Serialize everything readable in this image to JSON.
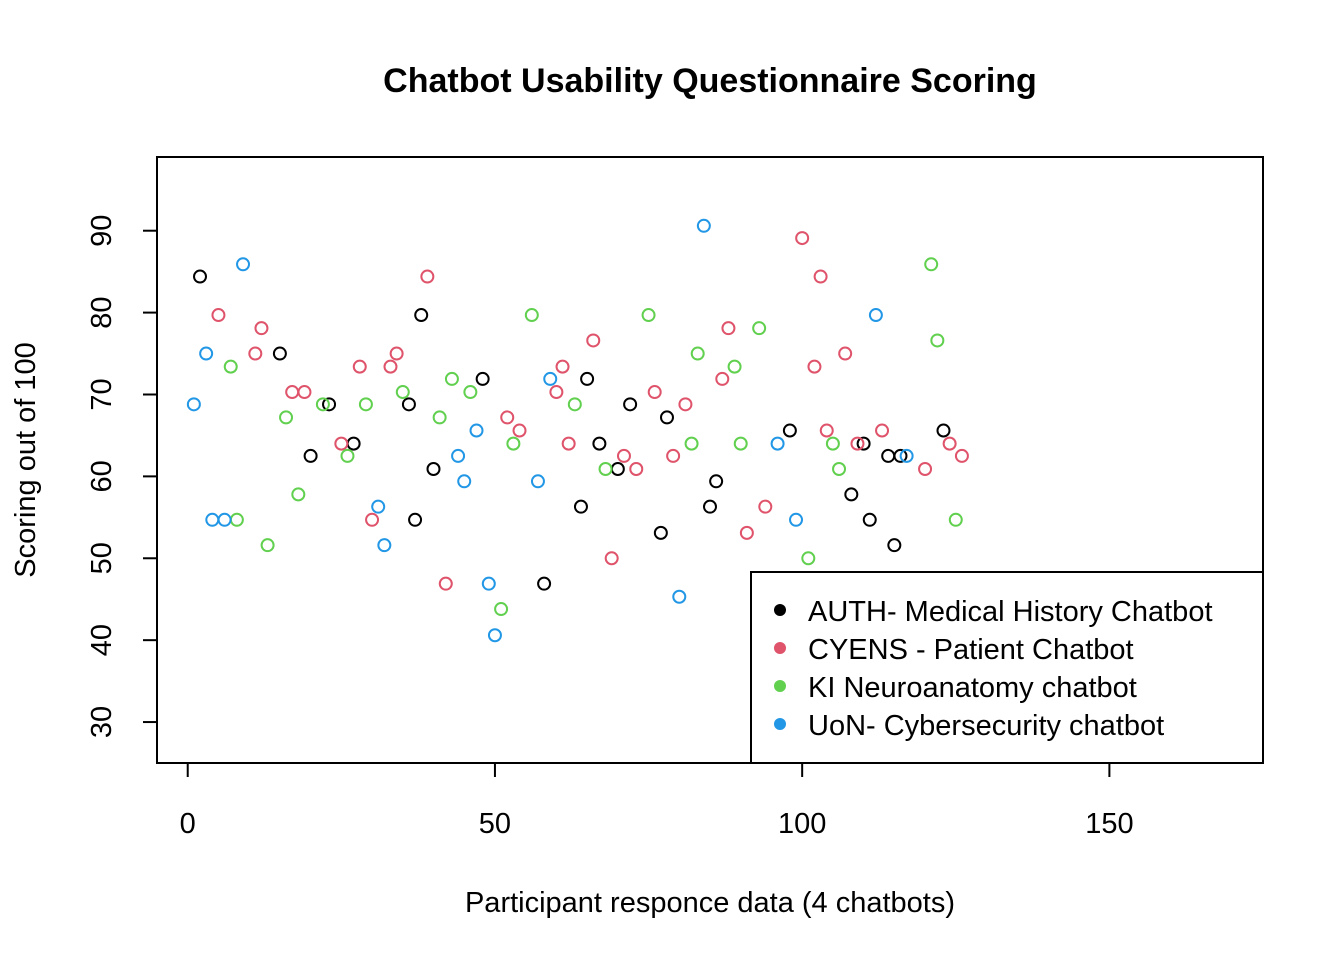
{
  "chart_data": {
    "type": "scatter",
    "title": "Chatbot Usability Questionnaire Scoring",
    "xlabel": "Participant responce data (4 chatbots)",
    "ylabel": "Scoring out of 100",
    "xlim": [
      -5,
      175
    ],
    "ylim": [
      25,
      99
    ],
    "xticks": [
      0,
      50,
      100,
      150
    ],
    "yticks": [
      30,
      40,
      50,
      60,
      70,
      80,
      90
    ],
    "grid": false,
    "legend_position": "bottom-right",
    "series": [
      {
        "name": "AUTH- Medical History Chatbot",
        "color": "#000000",
        "points": [
          [
            2,
            84.4
          ],
          [
            15,
            75
          ],
          [
            20,
            62.5
          ],
          [
            23,
            68.8
          ],
          [
            27,
            64
          ],
          [
            36,
            68.8
          ],
          [
            37,
            54.7
          ],
          [
            38,
            79.7
          ],
          [
            40,
            60.9
          ],
          [
            48,
            71.9
          ],
          [
            58,
            46.9
          ],
          [
            64,
            56.3
          ],
          [
            65,
            71.9
          ],
          [
            67,
            64
          ],
          [
            70,
            60.9
          ],
          [
            72,
            68.8
          ],
          [
            77,
            53.1
          ],
          [
            78,
            67.2
          ],
          [
            85,
            56.3
          ],
          [
            86,
            59.4
          ],
          [
            98,
            65.6
          ],
          [
            108,
            57.8
          ],
          [
            110,
            64
          ],
          [
            111,
            54.7
          ],
          [
            114,
            62.5
          ],
          [
            115,
            51.6
          ],
          [
            116,
            62.5
          ],
          [
            123,
            65.6
          ]
        ]
      },
      {
        "name": "CYENS - Patient Chatbot",
        "color": "#DF536B",
        "points": [
          [
            5,
            79.7
          ],
          [
            11,
            75
          ],
          [
            12,
            78.1
          ],
          [
            17,
            70.3
          ],
          [
            19,
            70.3
          ],
          [
            25,
            64
          ],
          [
            28,
            73.4
          ],
          [
            30,
            54.7
          ],
          [
            33,
            73.4
          ],
          [
            34,
            75
          ],
          [
            39,
            84.4
          ],
          [
            42,
            46.9
          ],
          [
            52,
            67.2
          ],
          [
            54,
            65.6
          ],
          [
            60,
            70.3
          ],
          [
            61,
            73.4
          ],
          [
            62,
            64
          ],
          [
            66,
            76.6
          ],
          [
            69,
            50
          ],
          [
            71,
            62.5
          ],
          [
            73,
            60.9
          ],
          [
            76,
            70.3
          ],
          [
            79,
            62.5
          ],
          [
            81,
            68.8
          ],
          [
            87,
            71.9
          ],
          [
            88,
            78.1
          ],
          [
            91,
            53.1
          ],
          [
            94,
            56.3
          ],
          [
            100,
            89.1
          ],
          [
            102,
            73.4
          ],
          [
            103,
            84.4
          ],
          [
            104,
            65.6
          ],
          [
            107,
            75
          ],
          [
            109,
            64
          ],
          [
            113,
            65.6
          ],
          [
            120,
            60.9
          ],
          [
            124,
            64
          ],
          [
            126,
            62.5
          ]
        ]
      },
      {
        "name": "KI Neuroanatomy chatbot",
        "color": "#61D04F",
        "points": [
          [
            7,
            73.4
          ],
          [
            8,
            54.7
          ],
          [
            13,
            51.6
          ],
          [
            16,
            67.2
          ],
          [
            18,
            57.8
          ],
          [
            22,
            68.8
          ],
          [
            26,
            62.5
          ],
          [
            29,
            68.8
          ],
          [
            35,
            70.3
          ],
          [
            41,
            67.2
          ],
          [
            43,
            71.9
          ],
          [
            46,
            70.3
          ],
          [
            51,
            43.8
          ],
          [
            53,
            64
          ],
          [
            56,
            79.7
          ],
          [
            63,
            68.8
          ],
          [
            68,
            60.9
          ],
          [
            75,
            79.7
          ],
          [
            82,
            64
          ],
          [
            83,
            75
          ],
          [
            89,
            73.4
          ],
          [
            90,
            64
          ],
          [
            93,
            78.1
          ],
          [
            101,
            50
          ],
          [
            105,
            64
          ],
          [
            106,
            60.9
          ],
          [
            121,
            85.9
          ],
          [
            122,
            76.6
          ],
          [
            125,
            54.7
          ]
        ]
      },
      {
        "name": "UoN- Cybersecurity chatbot",
        "color": "#2297E6",
        "points": [
          [
            1,
            68.8
          ],
          [
            3,
            75
          ],
          [
            4,
            54.7
          ],
          [
            6,
            54.7
          ],
          [
            9,
            85.9
          ],
          [
            31,
            56.3
          ],
          [
            32,
            51.6
          ],
          [
            44,
            62.5
          ],
          [
            45,
            59.4
          ],
          [
            47,
            65.6
          ],
          [
            49,
            46.9
          ],
          [
            50,
            40.6
          ],
          [
            57,
            59.4
          ],
          [
            59,
            71.9
          ],
          [
            80,
            45.3
          ],
          [
            84,
            90.6
          ],
          [
            96,
            64
          ],
          [
            99,
            54.7
          ],
          [
            112,
            79.7
          ],
          [
            117,
            62.5
          ]
        ]
      }
    ]
  }
}
